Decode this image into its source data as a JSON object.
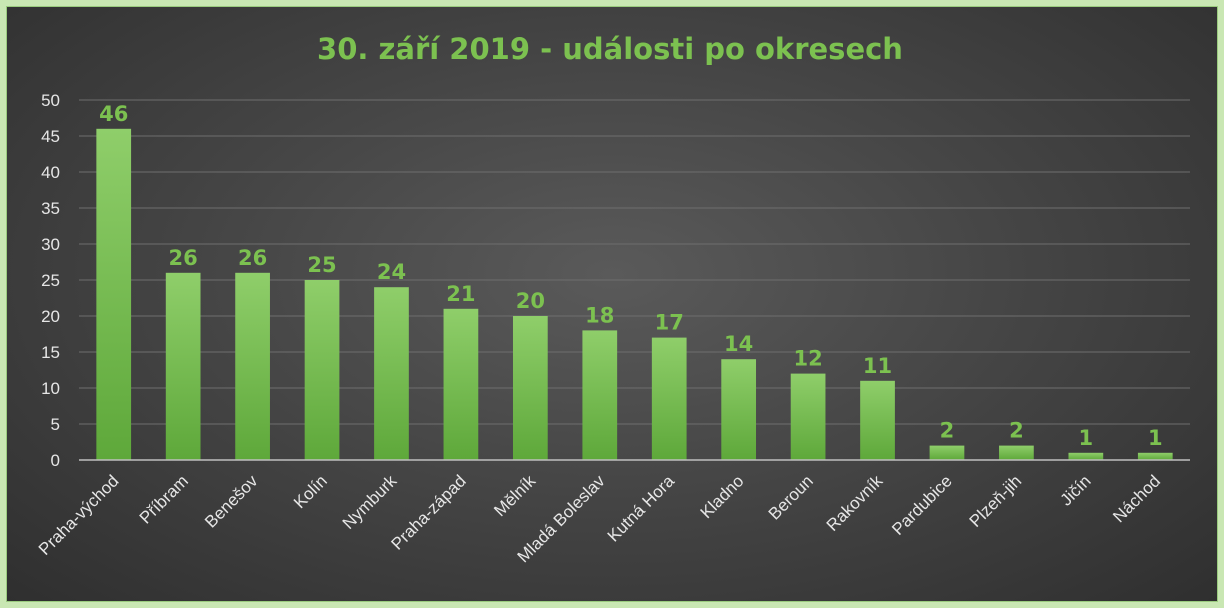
{
  "chart_data": {
    "type": "bar",
    "title": "30. září 2019 - události po okresech",
    "xlabel": "",
    "ylabel": "",
    "ylim": [
      0,
      50
    ],
    "yticks": [
      0,
      5,
      10,
      15,
      20,
      25,
      30,
      35,
      40,
      45,
      50
    ],
    "grid": true,
    "categories": [
      "Praha-východ",
      "Příbram",
      "Benešov",
      "Kolín",
      "Nymburk",
      "Praha-západ",
      "Mělník",
      "Mladá Boleslav",
      "Kutná Hora",
      "Kladno",
      "Beroun",
      "Rakovník",
      "Pardubice",
      "Plzeň-jih",
      "Jičín",
      "Náchod"
    ],
    "values": [
      46,
      26,
      26,
      25,
      24,
      21,
      20,
      18,
      17,
      14,
      12,
      11,
      2,
      2,
      1,
      1
    ],
    "data_labels": true
  },
  "colors": {
    "bar_top": "#8fce6a",
    "bar_bottom": "#5ea83a",
    "title": "#7cc150",
    "data_label": "#7cc150",
    "tick_text": "#e6e6e6"
  }
}
